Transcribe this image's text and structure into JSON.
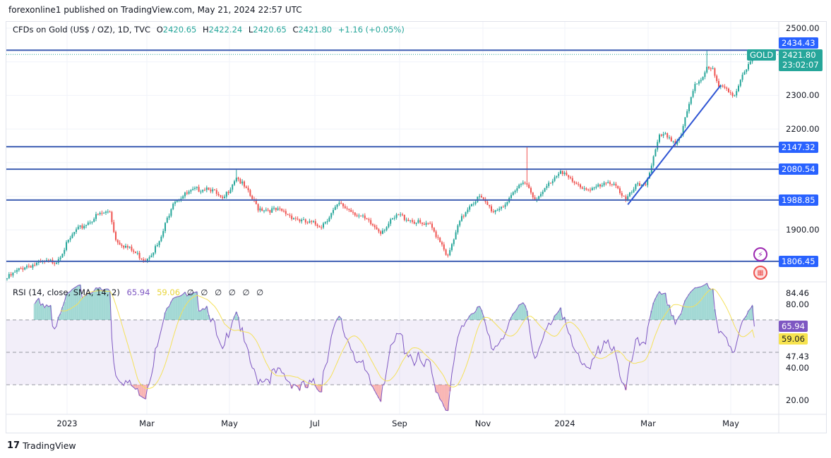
{
  "published": "forexonline1 published on TradingView.com, May 21, 2024 22:57 UTC",
  "legend": {
    "symbol": "CFDs on Gold (US$ / OZ), 1D, TVC",
    "o_label": "O",
    "o": "2420.65",
    "h_label": "H",
    "h": "2422.24",
    "l_label": "L",
    "l": "2420.65",
    "c_label": "C",
    "c": "2421.80",
    "change": "+1.16 (+0.05%)"
  },
  "price_axis": [
    "2500.00",
    "2300.00",
    "2200.00",
    "1900.00"
  ],
  "price_tags": {
    "resistance_top": "2434.43",
    "symbol_tag": "GOLD",
    "last_price": "2421.80",
    "countdown": "23:02:07",
    "levels": [
      "2147.32",
      "2080.54",
      "1988.85",
      "1806.45"
    ]
  },
  "rsi": {
    "title": "RSI (14, close, SMA, 14, 2)",
    "value": "65.94",
    "sma_value": "59.06",
    "empty_values": [
      "∅",
      "∅",
      "∅",
      "∅",
      "∅",
      "∅"
    ],
    "axis": [
      "84.46",
      "80.00",
      "47.43",
      "40.00",
      "20.00"
    ],
    "colors": {
      "rsi": "#7e57c2",
      "sma": "#f5e15a"
    }
  },
  "time_axis": [
    "2023",
    "Mar",
    "May",
    "Jul",
    "Sep",
    "Nov",
    "2024",
    "Mar",
    "May"
  ],
  "brand": "TradingView",
  "colors": {
    "up": "#26a69a",
    "down": "#ef5350",
    "level": "#3f5fb3",
    "tag": "#2962ff"
  },
  "chart_data": {
    "type": "candlestick",
    "title": "CFDs on Gold (US$ / OZ), 1D, TVC",
    "ylim": [
      1750,
      2520
    ],
    "yticks": [
      1900,
      2000,
      2100,
      2200,
      2300,
      2400,
      2500
    ],
    "horizontal_levels": [
      2434.43,
      2147.32,
      2080.54,
      1988.85,
      1806.45
    ],
    "trendline": [
      {
        "bar": 314,
        "price": 1975
      },
      {
        "bar": 361,
        "price": 2330
      }
    ],
    "close_keypoints": [
      [
        0,
        1756
      ],
      [
        9,
        1792
      ],
      [
        25,
        1808
      ],
      [
        34,
        1892
      ],
      [
        46,
        1944
      ],
      [
        52,
        1955
      ],
      [
        55,
        1871
      ],
      [
        68,
        1818
      ],
      [
        70,
        1812
      ],
      [
        77,
        1860
      ],
      [
        84,
        1986
      ],
      [
        95,
        2018
      ],
      [
        102,
        2028
      ],
      [
        109,
        1986
      ],
      [
        116,
        2060
      ],
      [
        121,
        2018
      ],
      [
        127,
        1965
      ],
      [
        139,
        1955
      ],
      [
        150,
        1923
      ],
      [
        159,
        1913
      ],
      [
        168,
        1976
      ],
      [
        175,
        1955
      ],
      [
        189,
        1896
      ],
      [
        198,
        1944
      ],
      [
        211,
        1913
      ],
      [
        214,
        1913
      ],
      [
        220,
        1860
      ],
      [
        223,
        1818
      ],
      [
        229,
        1923
      ],
      [
        234,
        1976
      ],
      [
        239,
        1997
      ],
      [
        246,
        1955
      ],
      [
        254,
        1986
      ],
      [
        261,
        2049
      ],
      [
        263,
        2035
      ],
      [
        268,
        1986
      ],
      [
        273,
        2028
      ],
      [
        280,
        2081
      ],
      [
        286,
        2039
      ],
      [
        293,
        2022
      ],
      [
        300,
        2028
      ],
      [
        307,
        2043
      ],
      [
        313,
        1986
      ],
      [
        318,
        2028
      ],
      [
        323,
        2039
      ],
      [
        327,
        2112
      ],
      [
        330,
        2175
      ],
      [
        334,
        2181
      ],
      [
        338,
        2158
      ],
      [
        341,
        2185
      ],
      [
        345,
        2270
      ],
      [
        348,
        2332
      ],
      [
        352,
        2357
      ],
      [
        354,
        2391
      ],
      [
        357,
        2374
      ],
      [
        360,
        2322
      ],
      [
        364,
        2322
      ],
      [
        368,
        2301
      ],
      [
        371,
        2343
      ],
      [
        375,
        2385
      ],
      [
        378,
        2421.8
      ]
    ],
    "high_spikes": [
      [
        116,
        2080
      ],
      [
        263,
        2147
      ],
      [
        354,
        2434
      ]
    ],
    "rsi_period": 14,
    "rsi_sma_period": 14,
    "rsi_bands": [
      70,
      50,
      30
    ],
    "rsi_last": 65.94,
    "rsi_sma_last": 59.06
  }
}
